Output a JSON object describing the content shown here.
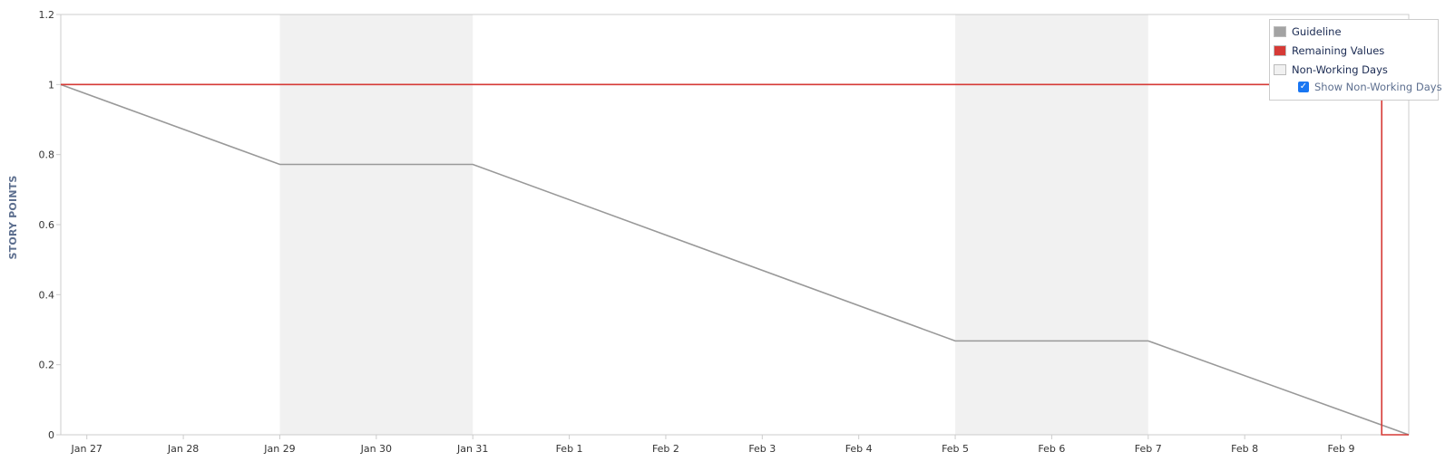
{
  "chart_data": {
    "type": "line",
    "ylabel": "STORY POINTS",
    "ylim": [
      0,
      1.2
    ],
    "yticks": [
      "0",
      "0.2",
      "0.4",
      "0.6",
      "0.8",
      "1",
      "1.2"
    ],
    "x_tick_labels": [
      "Jan 27",
      "Jan 28",
      "Jan 29",
      "Jan 30",
      "Jan 31",
      "Feb 1",
      "Feb 2",
      "Feb 3",
      "Feb 4",
      "Feb 5",
      "Feb 6",
      "Feb 7",
      "Feb 8",
      "Feb 9"
    ],
    "x_range": [
      -0.27,
      13.7
    ],
    "grid": false,
    "legend_position": "top-right",
    "non_working_days": [
      {
        "start": 2,
        "end": 4
      },
      {
        "start": 9,
        "end": 11
      }
    ],
    "series": [
      {
        "name": "Guideline",
        "color": "#999999",
        "points": [
          {
            "x": -0.27,
            "y": 1.0
          },
          {
            "x": 2,
            "y": 0.772
          },
          {
            "x": 4,
            "y": 0.772
          },
          {
            "x": 9,
            "y": 0.268
          },
          {
            "x": 11,
            "y": 0.268
          },
          {
            "x": 13.7,
            "y": 0.0
          }
        ]
      },
      {
        "name": "Remaining Values",
        "color": "#d63a36",
        "points": [
          {
            "x": -0.27,
            "y": 1.0
          },
          {
            "x": 13.42,
            "y": 1.0
          },
          {
            "x": 13.42,
            "y": 0.0
          },
          {
            "x": 13.7,
            "y": 0.0
          }
        ]
      }
    ]
  },
  "legend": {
    "items": [
      {
        "label": "Guideline",
        "swatch": "#a3a3a3"
      },
      {
        "label": "Remaining Values",
        "swatch": "#d63a36"
      },
      {
        "label": "Non-Working Days",
        "swatch": "#f1f1f1"
      }
    ],
    "toggle_label": "Show Non-Working Days",
    "toggle_checked": true
  },
  "colors": {
    "axis": "#cccccc",
    "non_working_fill": "#f1f1f1"
  }
}
